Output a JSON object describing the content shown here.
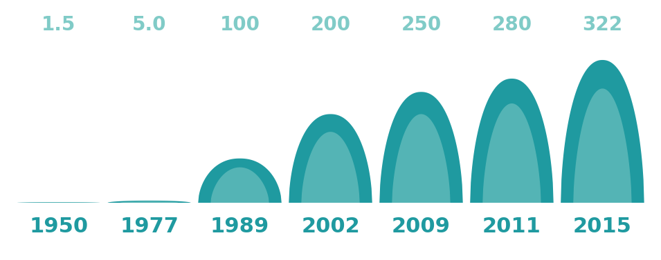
{
  "chart_data": {
    "type": "bar",
    "categories": [
      "1950",
      "1977",
      "1989",
      "2002",
      "2009",
      "2011",
      "2015"
    ],
    "values": [
      1.5,
      5.0,
      100,
      200,
      250,
      280,
      322
    ],
    "color": "#1f9aa0",
    "ylim": [
      0,
      340
    ],
    "yticks": [
      0,
      340
    ],
    "data_labels": true,
    "tick_labels": "x",
    "grid": false
  }
}
